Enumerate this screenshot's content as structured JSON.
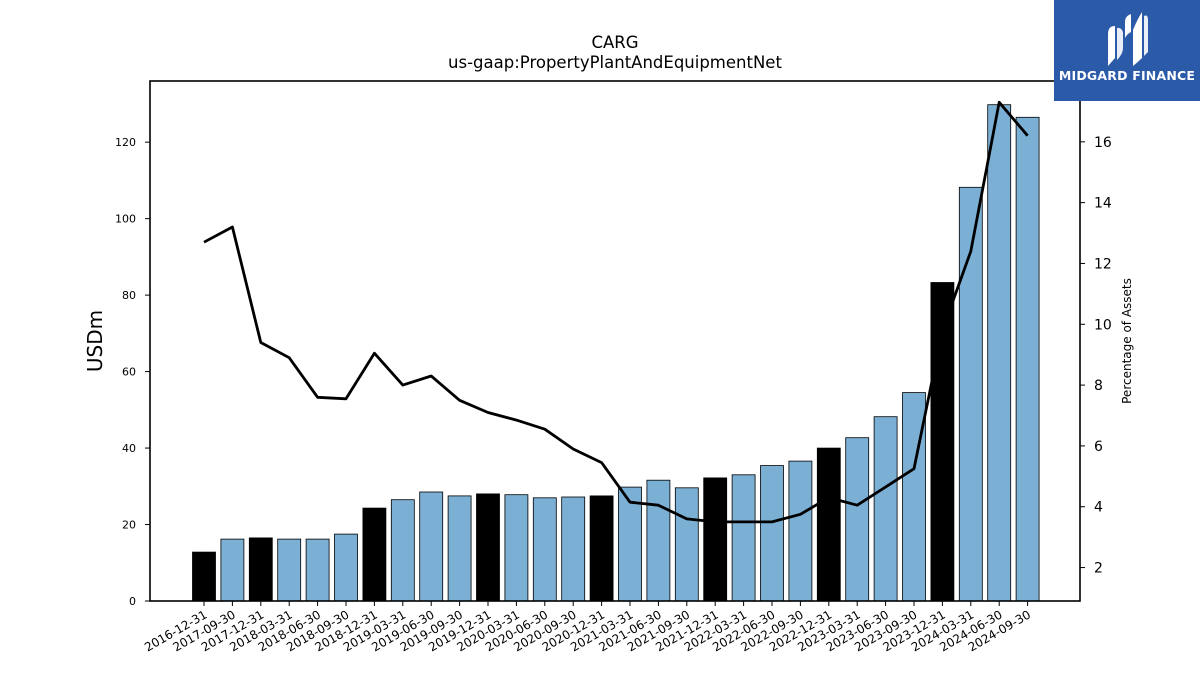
{
  "brand": {
    "name": "MIDGARD FINANCE",
    "bg_color": "#2a5aa8"
  },
  "chart_data": {
    "type": "bar",
    "title": "CARG",
    "subtitle": "us-gaap:PropertyPlantAndEquipmentNet",
    "ylabel": "USDm",
    "y2label": "Percentage of Assets",
    "ylim": [
      0,
      136
    ],
    "y2lim": [
      0.9,
      18.0
    ],
    "yticks": [
      0,
      20,
      40,
      60,
      80,
      100,
      120
    ],
    "y2ticks": [
      2,
      4,
      6,
      8,
      10,
      12,
      14,
      16
    ],
    "grid": false,
    "categories": [
      "2016-12-31",
      "2017-09-30",
      "2017-12-31",
      "2018-03-31",
      "2018-06-30",
      "2018-09-30",
      "2018-12-31",
      "2019-03-31",
      "2019-06-30",
      "2019-09-30",
      "2019-12-31",
      "2020-03-31",
      "2020-06-30",
      "2020-09-30",
      "2020-12-31",
      "2021-03-31",
      "2021-06-30",
      "2021-09-30",
      "2021-12-31",
      "2022-03-31",
      "2022-06-30",
      "2022-09-30",
      "2022-12-31",
      "2023-03-31",
      "2023-06-30",
      "2023-09-30",
      "2023-12-31",
      "2024-03-31",
      "2024-06-30",
      "2024-09-30"
    ],
    "series": [
      {
        "kind": "bar",
        "values": [
          12.8,
          16.2,
          16.5,
          16.2,
          16.2,
          17.5,
          24.3,
          26.5,
          28.5,
          27.5,
          28.0,
          27.8,
          27.0,
          27.2,
          27.5,
          29.8,
          31.6,
          29.6,
          32.2,
          33.0,
          35.4,
          36.6,
          40.0,
          42.7,
          48.2,
          54.5,
          83.3,
          108.2,
          129.8,
          126.5
        ],
        "fiscal_year_end": [
          true,
          false,
          true,
          false,
          false,
          false,
          true,
          false,
          false,
          false,
          true,
          false,
          false,
          false,
          true,
          false,
          false,
          false,
          true,
          false,
          false,
          false,
          true,
          false,
          false,
          false,
          true,
          false,
          false,
          false
        ],
        "color_quarter": "#7bafd4",
        "color_year_end": "#000000"
      },
      {
        "kind": "line",
        "axis": "right",
        "values": [
          12.7,
          13.2,
          9.4,
          8.9,
          7.6,
          7.55,
          9.05,
          8.0,
          8.3,
          7.5,
          7.1,
          6.85,
          6.55,
          5.9,
          5.45,
          4.15,
          4.05,
          3.6,
          3.5,
          3.5,
          3.5,
          3.75,
          4.3,
          4.05,
          4.65,
          5.25,
          9.8,
          12.4,
          17.3,
          16.2
        ],
        "color": "#000000"
      }
    ]
  }
}
